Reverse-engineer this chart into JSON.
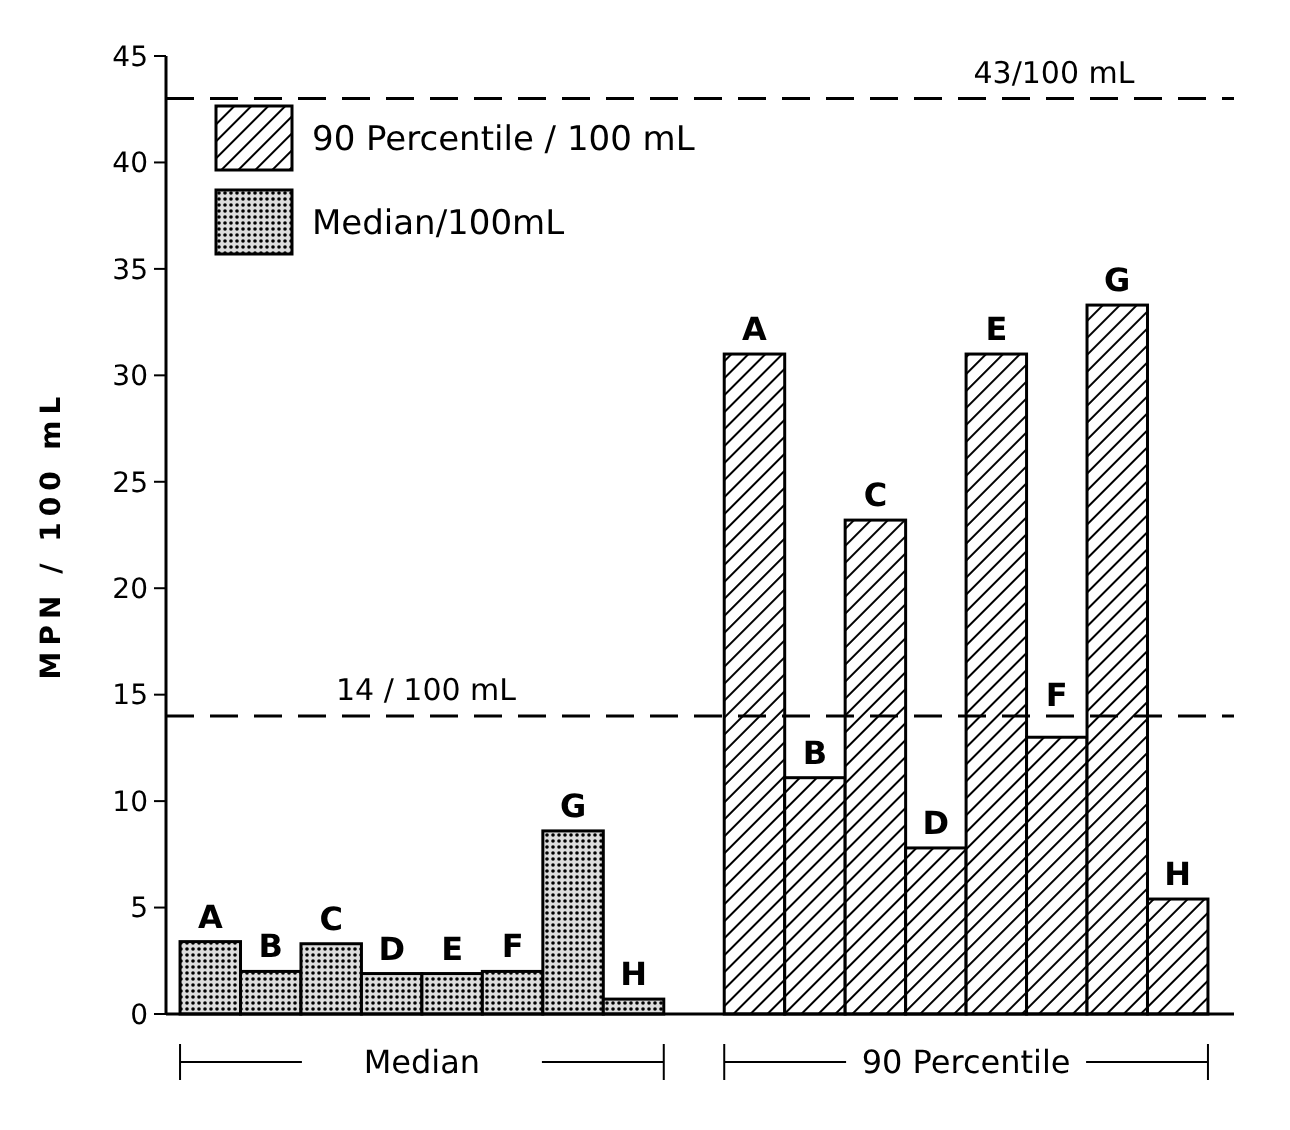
{
  "chart_data": {
    "type": "bar",
    "ylabel": "MPN / 100 mL",
    "categories": [
      "A",
      "B",
      "C",
      "D",
      "E",
      "F",
      "G",
      "H",
      null,
      "A",
      "B",
      "C",
      "D",
      "E",
      "F",
      "G",
      "H"
    ],
    "series": [
      {
        "name": "90 Percentile / 100 mL",
        "color": "#000000",
        "values": [
          null,
          null,
          null,
          null,
          null,
          null,
          null,
          null,
          null,
          31,
          11.1,
          23.2,
          7.8,
          31,
          13,
          33.3,
          5.4
        ]
      },
      {
        "name": "Median/100mL",
        "color": "#000000",
        "values": [
          3.4,
          2,
          3.3,
          1.9,
          1.9,
          2,
          8.6,
          0.7,
          null,
          null,
          null,
          null,
          null,
          null,
          null,
          null,
          null
        ]
      }
    ],
    "ylim": [
      0,
      45
    ],
    "yticks": [
      0,
      5,
      10,
      15,
      20,
      25,
      30,
      35,
      40,
      45
    ],
    "grid": false,
    "legend": "top left",
    "ref_lines": [
      {
        "axis": "y",
        "value": 43,
        "label": "43/100 mL",
        "line_style": "dashed"
      },
      {
        "axis": "y",
        "value": 14,
        "label": "14 / 100 mL",
        "line_style": "dashed"
      }
    ],
    "annotations": [
      "Median",
      "90 Percentile"
    ]
  }
}
